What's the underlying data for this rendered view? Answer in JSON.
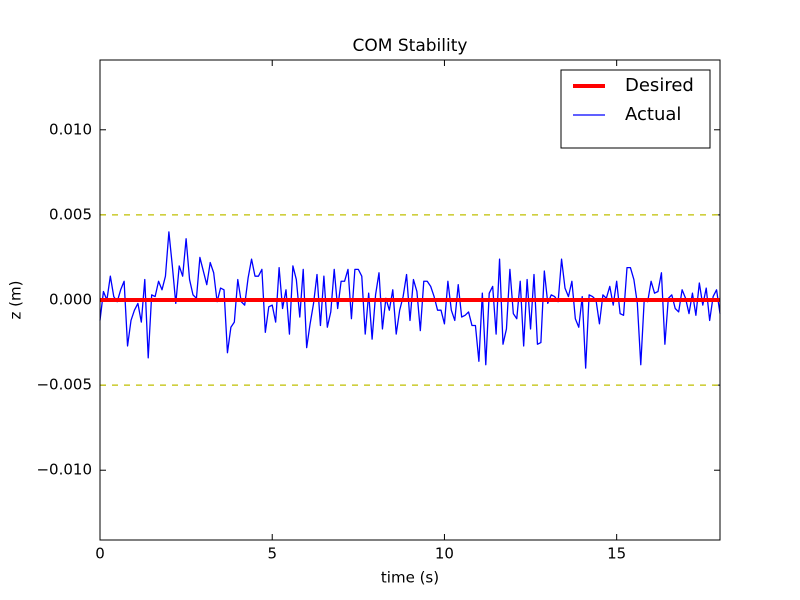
{
  "chart_data": {
    "type": "line",
    "title": "COM Stability",
    "x_label": "time (s)",
    "y_label": "z (m)",
    "xlim": [
      0,
      18
    ],
    "ylim": [
      -0.0141,
      0.0141
    ],
    "xticks": [
      0,
      5,
      10,
      15
    ],
    "yticks": [
      {
        "value": -0.01,
        "label": "−0.010"
      },
      {
        "value": -0.005,
        "label": "−0.005"
      },
      {
        "value": 0,
        "label": "0.000"
      },
      {
        "value": 0.005,
        "label": "0.005"
      },
      {
        "value": 0.01,
        "label": "0.010"
      }
    ],
    "hlines": [
      {
        "value": 0.005,
        "color": "#bfbf00"
      },
      {
        "value": -0.005,
        "color": "#bfbf00"
      }
    ],
    "legend": "upper right",
    "series": [
      {
        "name": "Desired",
        "color": "#ff0000",
        "width": 4,
        "x": [
          0,
          18
        ],
        "values": [
          0,
          0
        ]
      },
      {
        "name": "Actual",
        "color": "#0000ff",
        "width": 1.3,
        "x": [
          0,
          0.1,
          0.2,
          0.3,
          0.4,
          0.5,
          0.6,
          0.7,
          0.8,
          0.9,
          1,
          1.1,
          1.2,
          1.3,
          1.4,
          1.5,
          1.6,
          1.7,
          1.8,
          1.9,
          2,
          2.1,
          2.2,
          2.3,
          2.4,
          2.5,
          2.6,
          2.7,
          2.8,
          2.9,
          3,
          3.1,
          3.2,
          3.3,
          3.4,
          3.5,
          3.6,
          3.7,
          3.8,
          3.9,
          4,
          4.1,
          4.2,
          4.3,
          4.4,
          4.5,
          4.6,
          4.7,
          4.8,
          4.9,
          5,
          5.1,
          5.2,
          5.3,
          5.4,
          5.5,
          5.6,
          5.7,
          5.8,
          5.9,
          6,
          6.1,
          6.2,
          6.3,
          6.4,
          6.5,
          6.6,
          6.7,
          6.8,
          6.9,
          7,
          7.1,
          7.2,
          7.3,
          7.4,
          7.5,
          7.6,
          7.7,
          7.8,
          7.9,
          8,
          8.1,
          8.2,
          8.3,
          8.4,
          8.5,
          8.6,
          8.7,
          8.8,
          8.9,
          9,
          9.1,
          9.2,
          9.3,
          9.4,
          9.5,
          9.6,
          9.7,
          9.8,
          9.9,
          10,
          10.1,
          10.2,
          10.3,
          10.4,
          10.5,
          10.6,
          10.7,
          10.8,
          10.9,
          11,
          11.1,
          11.2,
          11.3,
          11.4,
          11.5,
          11.6,
          11.7,
          11.8,
          11.9,
          12,
          12.1,
          12.2,
          12.3,
          12.4,
          12.5,
          12.6,
          12.7,
          12.8,
          12.9,
          13,
          13.1,
          13.2,
          13.3,
          13.4,
          13.5,
          13.6,
          13.7,
          13.8,
          13.9,
          14,
          14.1,
          14.2,
          14.3,
          14.4,
          14.5,
          14.6,
          14.7,
          14.8,
          14.9,
          15,
          15.1,
          15.2,
          15.3,
          15.4,
          15.5,
          15.6,
          15.7,
          15.8,
          15.9,
          16,
          16.1,
          16.2,
          16.3,
          16.4,
          16.5,
          16.6,
          16.7,
          16.8,
          16.9,
          17,
          17.1,
          17.2,
          17.3,
          17.4,
          17.5,
          17.6,
          17.7,
          17.8,
          17.9,
          18
        ],
        "values": [
          -0.0012,
          0.0005,
          0.0,
          0.0014,
          0.0002,
          -0.0001,
          0.0006,
          0.0011,
          -0.0027,
          -0.0012,
          -0.0006,
          -0.0002,
          -0.0013,
          0.0012,
          -0.0034,
          0.0003,
          0.0002,
          0.0011,
          0.0006,
          0.0014,
          0.004,
          0.002,
          -0.0002,
          0.002,
          0.0014,
          0.0036,
          0.0012,
          0.0003,
          0.0001,
          0.0025,
          0.0017,
          0.0009,
          0.0022,
          0.0016,
          -0.0001,
          0.0007,
          0.0006,
          -0.0031,
          -0.0016,
          -0.0013,
          0.0012,
          -0.0001,
          -0.0003,
          0.0013,
          0.0024,
          0.0014,
          0.0014,
          0.0018,
          -0.0019,
          -0.0004,
          -0.0003,
          -0.0013,
          0.0019,
          -0.0005,
          0.0006,
          -0.002,
          0.002,
          0.0012,
          -0.001,
          0.0018,
          -0.0028,
          -0.0014,
          -0.0002,
          0.0015,
          -0.0015,
          0.0014,
          -0.0016,
          -0.0007,
          0.0018,
          -0.0005,
          0.0011,
          0.0011,
          0.0018,
          -0.0011,
          0.0018,
          0.0018,
          0.0014,
          -0.002,
          0.0004,
          -0.0023,
          0.0003,
          0.0016,
          -0.0017,
          0.0001,
          -0.0006,
          0.0006,
          -0.002,
          -0.0006,
          0.0002,
          0.0015,
          -0.0012,
          0.0012,
          0.0005,
          -0.0018,
          0.0011,
          0.0011,
          0.0008,
          0.0002,
          -0.0006,
          -0.0006,
          -0.0014,
          0.0011,
          -0.0006,
          -0.0012,
          0.0009,
          -0.001,
          -0.0009,
          -0.0007,
          -0.0015,
          -0.0015,
          -0.0036,
          0.0004,
          -0.0038,
          0.0004,
          0.0008,
          -0.002,
          0.0024,
          -0.0026,
          -0.0017,
          0.0018,
          -0.0008,
          -0.0011,
          0.0011,
          -0.0027,
          0.0012,
          -0.0017,
          0.0015,
          -0.0026,
          -0.0025,
          0.0017,
          -0.0002,
          0.0003,
          0.0002,
          -0.0001,
          0.0024,
          0.0007,
          0.0002,
          0.0011,
          -0.0011,
          -0.0016,
          0.0002,
          -0.004,
          0.0003,
          0.0002,
          0.0,
          -0.0014,
          0.0003,
          0.0001,
          0.0008,
          -0.0003,
          0.0011,
          -0.0008,
          -0.0009,
          0.0019,
          0.0019,
          0.0012,
          -0.0002,
          -0.0038,
          0.0,
          -0.0001,
          0.0011,
          0.0004,
          0.0005,
          0.0016,
          -0.0026,
          0.0001,
          0.0003,
          -0.0005,
          -0.0007,
          0.0006,
          0.0001,
          -0.0008,
          0.0004,
          -0.0009,
          0.001,
          -0.0003,
          0.0007,
          -0.0012,
          0.0002,
          0.0006,
          -0.0008
        ]
      }
    ]
  }
}
